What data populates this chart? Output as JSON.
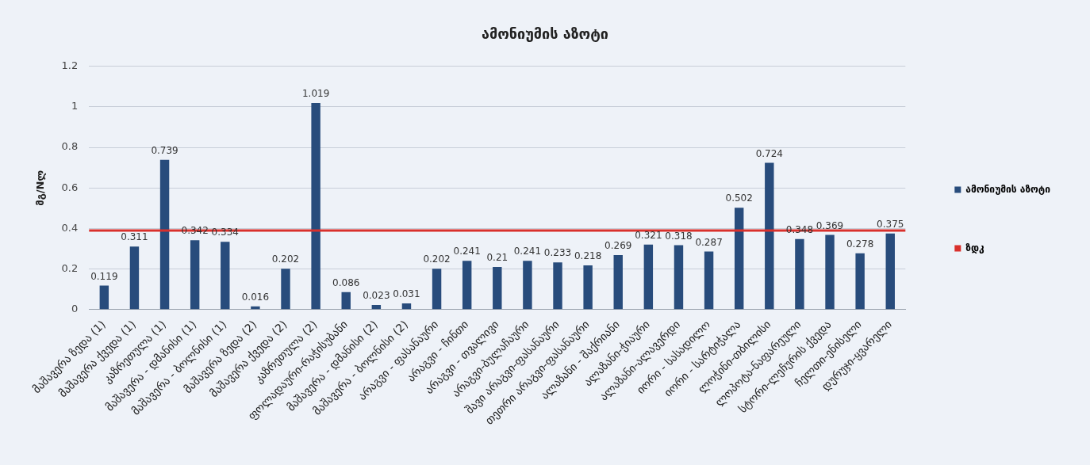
{
  "chart_data": {
    "type": "bar",
    "title": "ამონიუმის აზოტი",
    "ylabel": "მგ/Nლ",
    "categories": [
      "მაშავერა ზედა (1)",
      "მაშავერა ქვედა (1)",
      "კაზრეთულა (1)",
      "მაშავერა - დმანისი (1)",
      "მაშავერა - ბოლნისი (1)",
      "მაშავერა ზედა (2)",
      "მაშავერა ქვედა (2)",
      "კაზრეთულა (2)",
      "ფოლადაური-რაჭისუბანი",
      "მაშავერა - დმანისი (2)",
      "მაშავერა - ბოლნისი (2)",
      "არაგვი - ფასანაური",
      "არაგვი - ჩინთი",
      "არაგვი - თვალივი",
      "არაგვი-ბულაჩაური",
      "შავი არაგვი-ფასანაური",
      "თეთრი არაგვი-ფასანაური",
      "ალაზანი - შაქრიანი",
      "ალაზანი-ჭიაური",
      "ალაზანი-ალავერდი",
      "იორი - სასადილო",
      "იორი - სარტიჭალა",
      "ლოჭინი-თბილისი",
      "ლოპოტა-ნაფარეული",
      "სტორი-ლეჩურის ქვედა",
      "ჩელთი-ენისელი",
      "დურუჯი-ყვარელი"
    ],
    "series": [
      {
        "name": "ამონიუმის აზოტი",
        "color": "#284c7c",
        "values": [
          0.119,
          0.311,
          0.739,
          0.342,
          0.334,
          0.016,
          0.202,
          1.019,
          0.086,
          0.023,
          0.031,
          0.202,
          0.241,
          0.21,
          0.241,
          0.233,
          0.218,
          0.269,
          0.321,
          0.318,
          0.287,
          0.502,
          0.724,
          0.348,
          0.369,
          0.278,
          0.375
        ]
      }
    ],
    "ylim": [
      0,
      1.2
    ],
    "yticks": [
      0,
      0.2,
      0.4,
      0.6,
      0.8,
      1,
      1.2
    ],
    "grid": "y",
    "legend": "right",
    "data_labels": true,
    "ref_lines": [
      {
        "axis": "y",
        "value": 0.39,
        "label": "ზდკ",
        "color": "#d9302c"
      }
    ]
  }
}
